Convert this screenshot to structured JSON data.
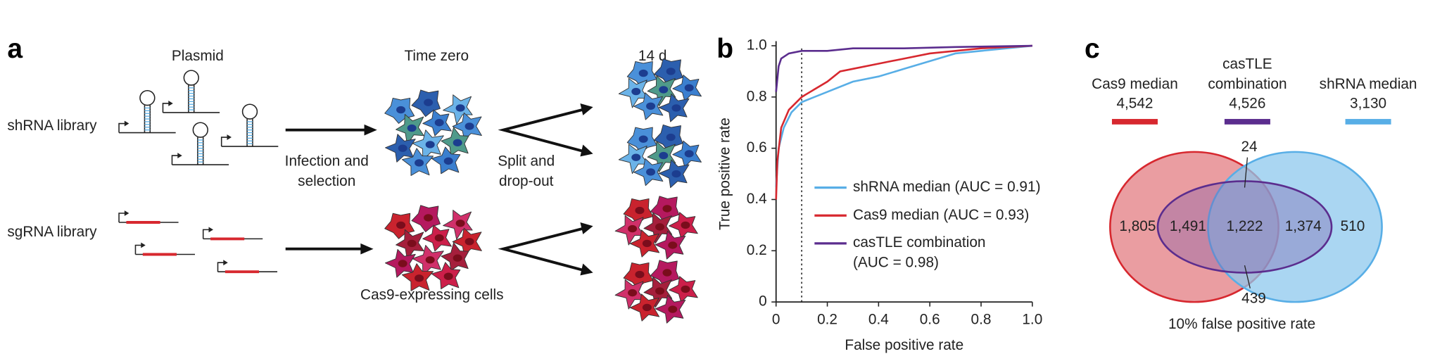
{
  "panel_a": {
    "label": "a",
    "columns": [
      "Plasmid",
      "Time zero",
      "14 d"
    ],
    "rows": [
      "shRNA library",
      "sgRNA library"
    ],
    "steps": [
      "Infection and selection",
      "Split and drop-out"
    ],
    "cells_label": "Cas9-expressing cells"
  },
  "chart_data": {
    "type": "line",
    "panel_label": "b",
    "xlabel": "False positive rate",
    "ylabel": "True positive rate",
    "xlim": [
      0,
      1
    ],
    "ylim": [
      0,
      1
    ],
    "xticks": [
      0,
      0.2,
      0.4,
      0.6,
      0.8,
      {
        "value": 1,
        "label": "1.0"
      }
    ],
    "yticks": [
      0,
      0.2,
      0.4,
      0.6,
      0.8,
      {
        "value": 1,
        "label": "1.0"
      }
    ],
    "vline_x": 0.1,
    "series": [
      {
        "name": "shRNA median (AUC = 0.91)",
        "color": "#58aee6",
        "x": [
          0,
          0.01,
          0.03,
          0.06,
          0.1,
          0.15,
          0.2,
          0.3,
          0.4,
          0.5,
          0.6,
          0.7,
          0.8,
          0.9,
          1
        ],
        "values": [
          0.45,
          0.6,
          0.68,
          0.74,
          0.78,
          0.8,
          0.82,
          0.86,
          0.88,
          0.91,
          0.94,
          0.97,
          0.98,
          0.99,
          1
        ]
      },
      {
        "name": "Cas9 median (AUC = 0.93)",
        "color": "#d7282f",
        "x": [
          0,
          0.005,
          0.02,
          0.05,
          0.1,
          0.15,
          0.2,
          0.25,
          0.3,
          0.4,
          0.5,
          0.6,
          0.7,
          0.8,
          1
        ],
        "values": [
          0.4,
          0.55,
          0.68,
          0.75,
          0.8,
          0.83,
          0.86,
          0.9,
          0.91,
          0.93,
          0.95,
          0.97,
          0.98,
          0.99,
          1
        ]
      },
      {
        "name": "casTLE combination (AUC = 0.98)",
        "color": "#5b2d8e",
        "x": [
          0,
          0.01,
          0.02,
          0.05,
          0.1,
          0.2,
          0.3,
          0.5,
          0.7,
          1
        ],
        "values": [
          0.82,
          0.92,
          0.95,
          0.97,
          0.98,
          0.98,
          0.99,
          0.99,
          0.995,
          1
        ]
      }
    ]
  },
  "panel_c": {
    "label": "c",
    "sets": [
      {
        "name": "Cas9 median",
        "count": "4,542",
        "color": "#d7282f"
      },
      {
        "name": "casTLE combination",
        "count": "4,526",
        "color": "#5b2d8e"
      },
      {
        "name": "shRNA median",
        "count": "3,130",
        "color": "#58aee6"
      }
    ],
    "regions": [
      "1,805",
      "1,491",
      "1,222",
      "1,374",
      "510"
    ],
    "callouts": [
      "24",
      "439"
    ],
    "caption": "10% false positive rate"
  }
}
